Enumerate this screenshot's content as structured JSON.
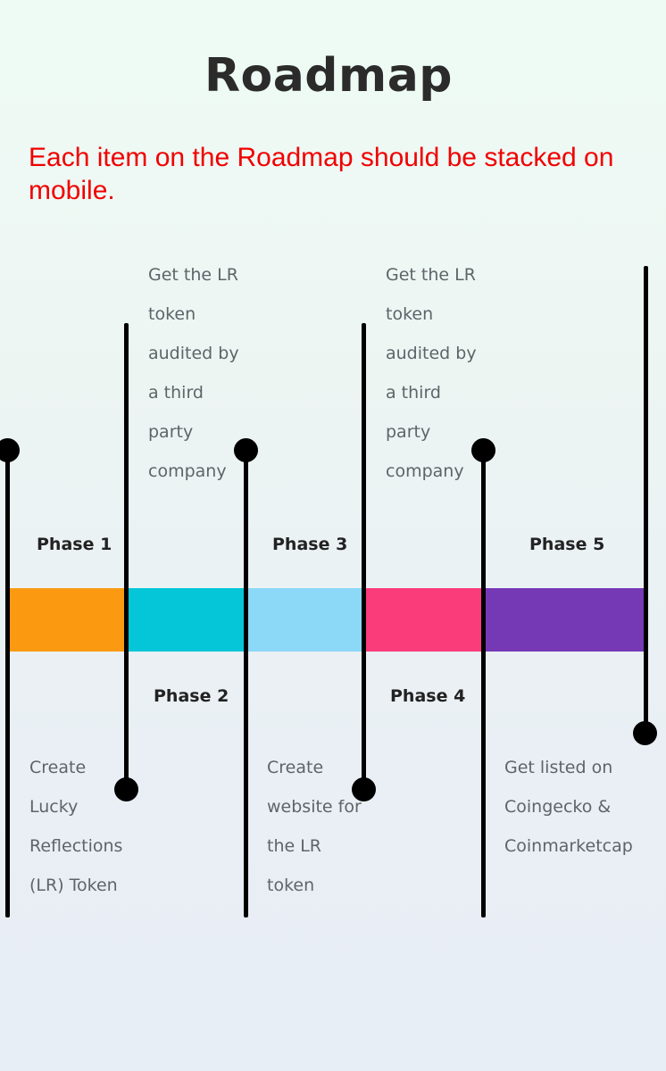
{
  "page": {
    "title": "Roadmap",
    "note": "Each item on the Roadmap should be stacked on mobile."
  },
  "colors": {
    "title": "#2b2b2b",
    "note": "#f00000",
    "line": "#000000",
    "description": "#5f6468"
  },
  "phases": [
    {
      "label": "Phase 1",
      "color": "#fb9a10",
      "description": "Create Lucky Reflections (LR) Token"
    },
    {
      "label": "Phase 2",
      "color": "#05c6d9",
      "description": "Get the LR token audited by a third party company"
    },
    {
      "label": "Phase 3",
      "color": "#8cd8f7",
      "description": "Create website for the LR token"
    },
    {
      "label": "Phase 4",
      "color": "#fb3c7a",
      "description": "Get the LR token audited by a third party company"
    },
    {
      "label": "Phase 5",
      "color": "#7639b6",
      "description": "Get listed on Coingecko & Coinmarketcap"
    }
  ]
}
